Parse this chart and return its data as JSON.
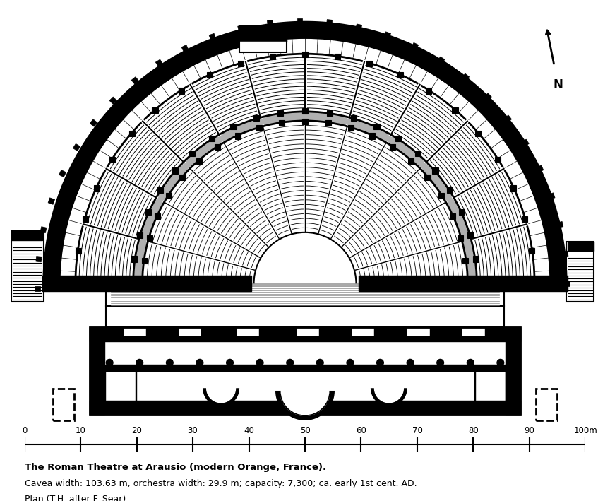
{
  "title_bold": "The Roman Theatre at Arausio (modern Orange, France).",
  "title_line2": "Cavea width: 103.63 m, orchestra width: 29.9 m; capacity: 7,300; ca. early 1st cent. AD.",
  "title_line3": "Plan (T.H. after F. Sear)",
  "scale_labels": [
    "0",
    "10",
    "20",
    "30",
    "40",
    "50",
    "60",
    "70",
    "80",
    "90",
    "100m"
  ],
  "bg_color": "#ffffff",
  "lc": "#000000"
}
